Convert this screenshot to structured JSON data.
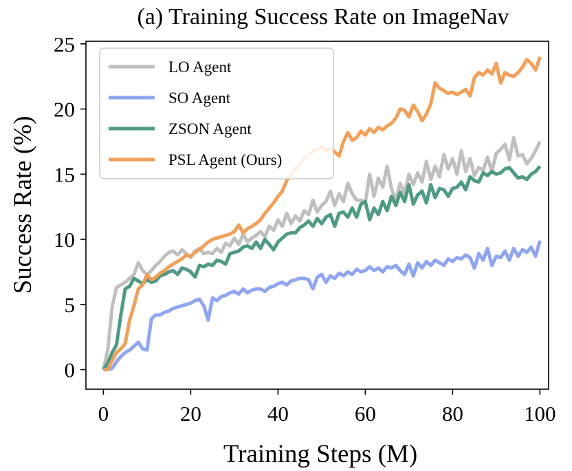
{
  "chart_data": {
    "type": "line",
    "title": "(a) Training Success Rate on ImageNav",
    "xlabel": "Training Steps (M)",
    "ylabel": "Success Rate (%)",
    "xlim": [
      -4,
      102
    ],
    "ylim": [
      -1.5,
      25.2
    ],
    "xticks": [
      0,
      20,
      40,
      60,
      80,
      100
    ],
    "yticks": [
      0,
      5,
      10,
      15,
      20,
      25
    ],
    "grid": false,
    "legend_position": "top-left",
    "series": [
      {
        "name": "LO Agent",
        "color": "#bfbfbf",
        "x": [
          0,
          1,
          2,
          3,
          4,
          5,
          6,
          7,
          8,
          9,
          10,
          11,
          12,
          13,
          14,
          15,
          16,
          17,
          18,
          19,
          20,
          21,
          22,
          23,
          24,
          25,
          26,
          27,
          28,
          29,
          30,
          31,
          32,
          33,
          34,
          35,
          36,
          37,
          38,
          39,
          40,
          41,
          42,
          43,
          44,
          45,
          46,
          47,
          48,
          49,
          50,
          51,
          52,
          53,
          54,
          55,
          56,
          57,
          58,
          59,
          60,
          61,
          62,
          63,
          64,
          65,
          66,
          67,
          68,
          69,
          70,
          71,
          72,
          73,
          74,
          75,
          76,
          77,
          78,
          79,
          80,
          81,
          82,
          83,
          84,
          85,
          86,
          87,
          88,
          89,
          90,
          91,
          92,
          93,
          94,
          95,
          96,
          97,
          98,
          99,
          100
        ],
        "values": [
          0,
          1.5,
          4.8,
          6.3,
          6.5,
          6.7,
          7.0,
          7.3,
          8.2,
          7.6,
          7.3,
          7.6,
          8.0,
          8.3,
          8.7,
          9.0,
          9.1,
          8.8,
          9.2,
          8.9,
          8.6,
          9.1,
          9.3,
          8.9,
          9.0,
          8.9,
          9.3,
          9.0,
          9.7,
          9.5,
          10.1,
          9.6,
          10.4,
          9.8,
          10.1,
          10.3,
          10.6,
          10.2,
          11.0,
          10.7,
          11.5,
          11.0,
          12.0,
          11.2,
          11.8,
          11.4,
          12.2,
          11.9,
          13.0,
          12.1,
          12.6,
          12.9,
          13.7,
          12.6,
          13.5,
          12.9,
          14.3,
          13.5,
          13.0,
          13.0,
          12.8,
          15.0,
          13.3,
          14.7,
          14.0,
          15.6,
          13.9,
          13.0,
          14.3,
          13.5,
          15.0,
          14.2,
          15.1,
          14.4,
          16.0,
          14.6,
          15.6,
          14.8,
          16.5,
          15.4,
          16.2,
          15.0,
          16.8,
          15.2,
          16.2,
          14.9,
          15.5,
          15.3,
          16.3,
          15.2,
          16.6,
          16.9,
          17.3,
          16.1,
          17.8,
          16.4,
          16.5,
          15.8,
          16.2,
          16.8,
          17.5
        ]
      },
      {
        "name": "SO Agent",
        "color": "#8fa5f0",
        "x": [
          0,
          1,
          2,
          3,
          4,
          5,
          6,
          7,
          8,
          9,
          10,
          11,
          12,
          13,
          14,
          15,
          16,
          17,
          18,
          19,
          20,
          21,
          22,
          23,
          24,
          25,
          26,
          27,
          28,
          29,
          30,
          31,
          32,
          33,
          34,
          35,
          36,
          37,
          38,
          39,
          40,
          41,
          42,
          43,
          44,
          45,
          46,
          47,
          48,
          49,
          50,
          51,
          52,
          53,
          54,
          55,
          56,
          57,
          58,
          59,
          60,
          61,
          62,
          63,
          64,
          65,
          66,
          67,
          68,
          69,
          70,
          71,
          72,
          73,
          74,
          75,
          76,
          77,
          78,
          79,
          80,
          81,
          82,
          83,
          84,
          85,
          86,
          87,
          88,
          89,
          90,
          91,
          92,
          93,
          94,
          95,
          96,
          97,
          98,
          99,
          100
        ],
        "values": [
          0,
          0,
          0.1,
          0.6,
          1.0,
          1.3,
          1.5,
          1.8,
          2.1,
          1.6,
          1.5,
          3.9,
          4.2,
          4.2,
          4.4,
          4.5,
          4.7,
          4.8,
          4.9,
          5.0,
          5.1,
          5.3,
          5.4,
          4.9,
          3.8,
          5.5,
          5.3,
          5.6,
          5.7,
          5.9,
          6.0,
          5.8,
          6.2,
          5.9,
          6.1,
          6.2,
          6.2,
          6.0,
          6.3,
          6.4,
          6.6,
          6.7,
          6.5,
          6.8,
          6.9,
          7.0,
          7.0,
          6.9,
          6.2,
          7.1,
          7.3,
          6.7,
          7.2,
          7.0,
          7.4,
          7.2,
          7.5,
          7.3,
          7.7,
          7.5,
          7.6,
          7.9,
          7.6,
          7.8,
          7.5,
          7.9,
          7.8,
          8.0,
          7.6,
          7.3,
          8.1,
          7.2,
          8.2,
          7.8,
          8.3,
          8.0,
          8.4,
          8.2,
          8.0,
          8.5,
          8.3,
          8.6,
          8.5,
          8.8,
          8.6,
          7.8,
          8.9,
          8.4,
          9.3,
          8.0,
          8.7,
          8.6,
          9.1,
          8.4,
          9.3,
          8.7,
          9.2,
          9.0,
          9.4,
          8.7,
          9.9
        ]
      },
      {
        "name": "ZSON Agent",
        "color": "#4e9a84",
        "x": [
          0,
          1,
          2,
          3,
          4,
          5,
          6,
          7,
          8,
          9,
          10,
          11,
          12,
          13,
          14,
          15,
          16,
          17,
          18,
          19,
          20,
          21,
          22,
          23,
          24,
          25,
          26,
          27,
          28,
          29,
          30,
          31,
          32,
          33,
          34,
          35,
          36,
          37,
          38,
          39,
          40,
          41,
          42,
          43,
          44,
          45,
          46,
          47,
          48,
          49,
          50,
          51,
          52,
          53,
          54,
          55,
          56,
          57,
          58,
          59,
          60,
          61,
          62,
          63,
          64,
          65,
          66,
          67,
          68,
          69,
          70,
          71,
          72,
          73,
          74,
          75,
          76,
          77,
          78,
          79,
          80,
          81,
          82,
          83,
          84,
          85,
          86,
          87,
          88,
          89,
          90,
          91,
          92,
          93,
          94,
          95,
          96,
          97,
          98,
          99,
          100
        ],
        "values": [
          0,
          0.5,
          1.3,
          1.9,
          4.2,
          6.2,
          6.4,
          7.0,
          6.8,
          6.6,
          6.9,
          6.7,
          6.8,
          7.2,
          7.3,
          7.5,
          7.6,
          7.3,
          7.8,
          7.7,
          7.5,
          7.1,
          8.0,
          7.9,
          8.1,
          8.0,
          8.4,
          8.3,
          8.1,
          8.9,
          9.0,
          9.1,
          9.4,
          9.5,
          9.3,
          9.8,
          9.3,
          10.0,
          9.6,
          9.2,
          9.8,
          10.1,
          10.4,
          10.5,
          10.5,
          10.9,
          11.1,
          11.4,
          11.0,
          11.6,
          11.2,
          11.7,
          11.9,
          11.0,
          12.0,
          12.1,
          11.7,
          12.4,
          11.7,
          12.7,
          12.9,
          11.5,
          12.4,
          11.9,
          12.9,
          12.2,
          13.3,
          12.6,
          13.6,
          12.9,
          14.2,
          12.7,
          13.4,
          13.7,
          12.8,
          14.2,
          13.2,
          13.9,
          13.8,
          13.3,
          13.9,
          14.0,
          14.4,
          13.8,
          14.8,
          14.5,
          14.4,
          15.1,
          14.9,
          15.2,
          15.0,
          15.1,
          15.4,
          15.5,
          15.1,
          14.7,
          14.8,
          14.6,
          15.0,
          15.2,
          15.6
        ]
      },
      {
        "name": "PSL Agent (Ours)",
        "color": "#f0a059",
        "x": [
          0,
          1,
          2,
          3,
          4,
          5,
          6,
          7,
          8,
          9,
          10,
          11,
          12,
          13,
          14,
          15,
          16,
          17,
          18,
          19,
          20,
          21,
          22,
          23,
          24,
          25,
          26,
          27,
          28,
          29,
          30,
          31,
          32,
          33,
          34,
          35,
          36,
          37,
          38,
          39,
          40,
          41,
          42,
          43,
          44,
          45,
          46,
          47,
          48,
          49,
          50,
          51,
          52,
          53,
          54,
          55,
          56,
          57,
          58,
          59,
          60,
          61,
          62,
          63,
          64,
          65,
          66,
          67,
          68,
          69,
          70,
          71,
          72,
          73,
          74,
          75,
          76,
          77,
          78,
          79,
          80,
          81,
          82,
          83,
          84,
          85,
          86,
          87,
          88,
          89,
          90,
          91,
          92,
          93,
          94,
          95,
          96,
          97,
          98,
          99,
          100
        ],
        "values": [
          0,
          0,
          0.7,
          1.3,
          1.6,
          2.0,
          3.8,
          4.9,
          6.2,
          6.5,
          7.3,
          6.9,
          7.1,
          7.4,
          7.6,
          7.9,
          8.1,
          8.3,
          8.5,
          8.8,
          8.7,
          9.0,
          9.2,
          9.5,
          9.8,
          10.0,
          10.1,
          10.2,
          10.3,
          10.4,
          10.6,
          11.1,
          10.5,
          10.8,
          11.0,
          11.2,
          11.5,
          12.0,
          12.4,
          12.8,
          13.3,
          13.7,
          14.5,
          15.0,
          15.4,
          15.8,
          16.2,
          16.5,
          16.8,
          16.9,
          17.1,
          16.8,
          17.0,
          16.7,
          16.4,
          17.5,
          18.2,
          17.6,
          17.8,
          18.3,
          18.0,
          18.5,
          18.2,
          18.6,
          18.4,
          18.7,
          18.9,
          19.3,
          20.0,
          19.9,
          19.4,
          20.3,
          19.8,
          19.1,
          19.6,
          20.4,
          22.0,
          21.6,
          21.4,
          21.2,
          21.3,
          21.1,
          21.3,
          21.5,
          21.0,
          22.4,
          22.8,
          22.6,
          23.0,
          22.7,
          23.5,
          22.0,
          22.8,
          22.6,
          22.5,
          22.8,
          23.2,
          23.8,
          23.5,
          23.0,
          24.0
        ]
      }
    ]
  }
}
